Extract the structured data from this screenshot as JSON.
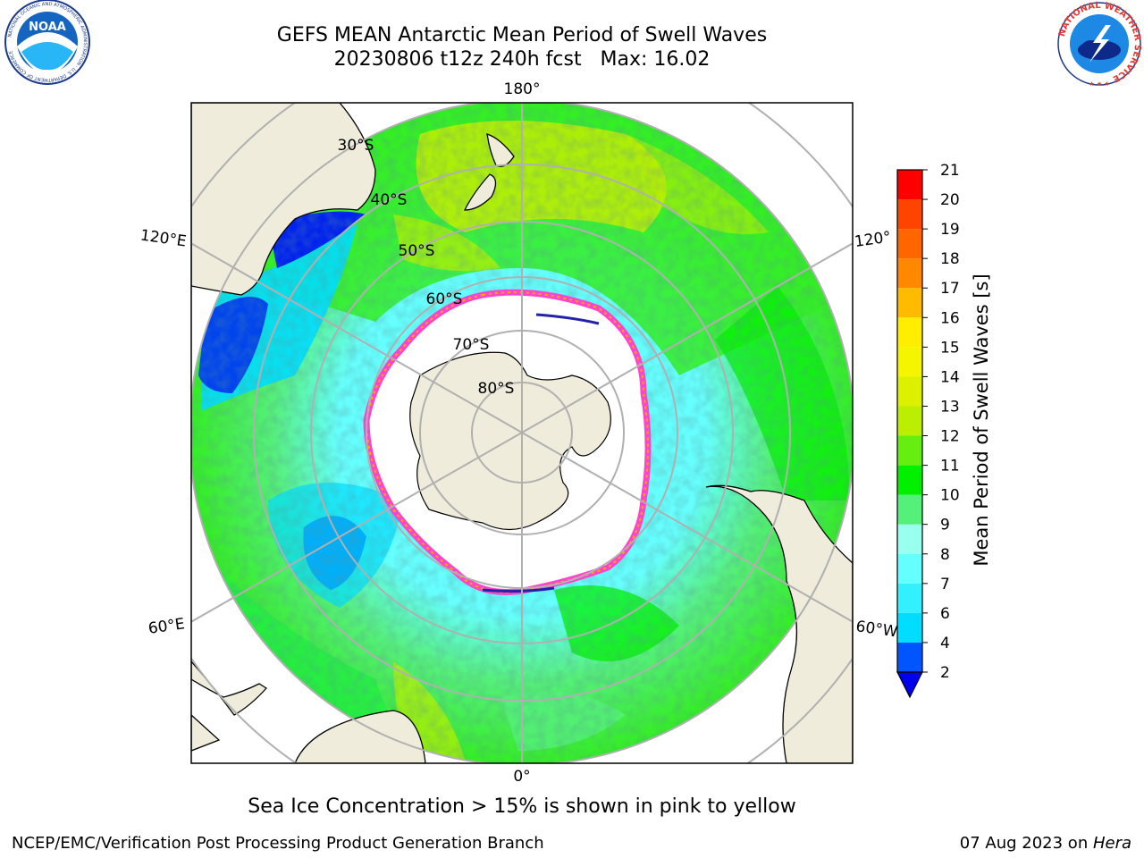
{
  "title": {
    "line1": "GEFS MEAN Antarctic Mean Period of Swell Waves",
    "line2": "20230806 t12z 240h fcst   Max: 16.02"
  },
  "map": {
    "projection": "south-polar-stereographic",
    "longitude_labels": {
      "top": "180°",
      "bottom": "0°",
      "left_upper": "120°E",
      "left_lower": "60°E",
      "right_upper": "120°",
      "right_lower": "60°W"
    },
    "latitude_labels": [
      "30°S",
      "40°S",
      "50°S",
      "60°S",
      "70°S",
      "80°S"
    ],
    "land_color": "#efecdc",
    "ice_edge_colors": [
      "#ff44cc",
      "#ffaa00",
      "#2222aa"
    ]
  },
  "chart_data": {
    "type": "heatmap",
    "variable": "Mean Period of Swell Waves [s]",
    "max_value": 16.02,
    "colorbar": {
      "label": "Mean Period of Swell Waves [s]",
      "ticks": [
        2,
        4,
        6,
        7,
        8,
        9,
        10,
        11,
        12,
        13,
        14,
        15,
        16,
        17,
        18,
        19,
        20,
        21
      ],
      "bins": [
        {
          "from": 2,
          "to": 4,
          "color": "#0055ff"
        },
        {
          "from": 4,
          "to": 6,
          "color": "#00ddff"
        },
        {
          "from": 6,
          "to": 7,
          "color": "#33f0ff"
        },
        {
          "from": 7,
          "to": 8,
          "color": "#66ffff"
        },
        {
          "from": 8,
          "to": 9,
          "color": "#99ffee"
        },
        {
          "from": 9,
          "to": 10,
          "color": "#55f07a"
        },
        {
          "from": 10,
          "to": 11,
          "color": "#00f000"
        },
        {
          "from": 11,
          "to": 12,
          "color": "#66ee11"
        },
        {
          "from": 12,
          "to": 13,
          "color": "#bbee00"
        },
        {
          "from": 13,
          "to": 14,
          "color": "#ddf000"
        },
        {
          "from": 14,
          "to": 15,
          "color": "#f5f500"
        },
        {
          "from": 15,
          "to": 16,
          "color": "#ffee00"
        },
        {
          "from": 16,
          "to": 17,
          "color": "#ffbb00"
        },
        {
          "from": 17,
          "to": 18,
          "color": "#ff8800"
        },
        {
          "from": 18,
          "to": 19,
          "color": "#ff6600"
        },
        {
          "from": 19,
          "to": 20,
          "color": "#ff4400"
        },
        {
          "from": 20,
          "to": 21,
          "color": "#ff0000"
        }
      ],
      "under_color": "#0000ee"
    }
  },
  "ice_note": "Sea Ice Concentration > 15% is shown in pink to yellow",
  "footer": {
    "left": "NCEP/EMC/Verification Post Processing Product Generation Branch",
    "right_date": "07 Aug 2023 on ",
    "right_host": "Hera"
  },
  "logos": {
    "noaa": "NOAA",
    "noaa_ring": "NATIONAL OCEANIC AND ATMOSPHERIC ADMINISTRATION · U.S. DEPARTMENT OF COMMERCE",
    "nws_ring": "NATIONAL WEATHER SERVICE"
  }
}
